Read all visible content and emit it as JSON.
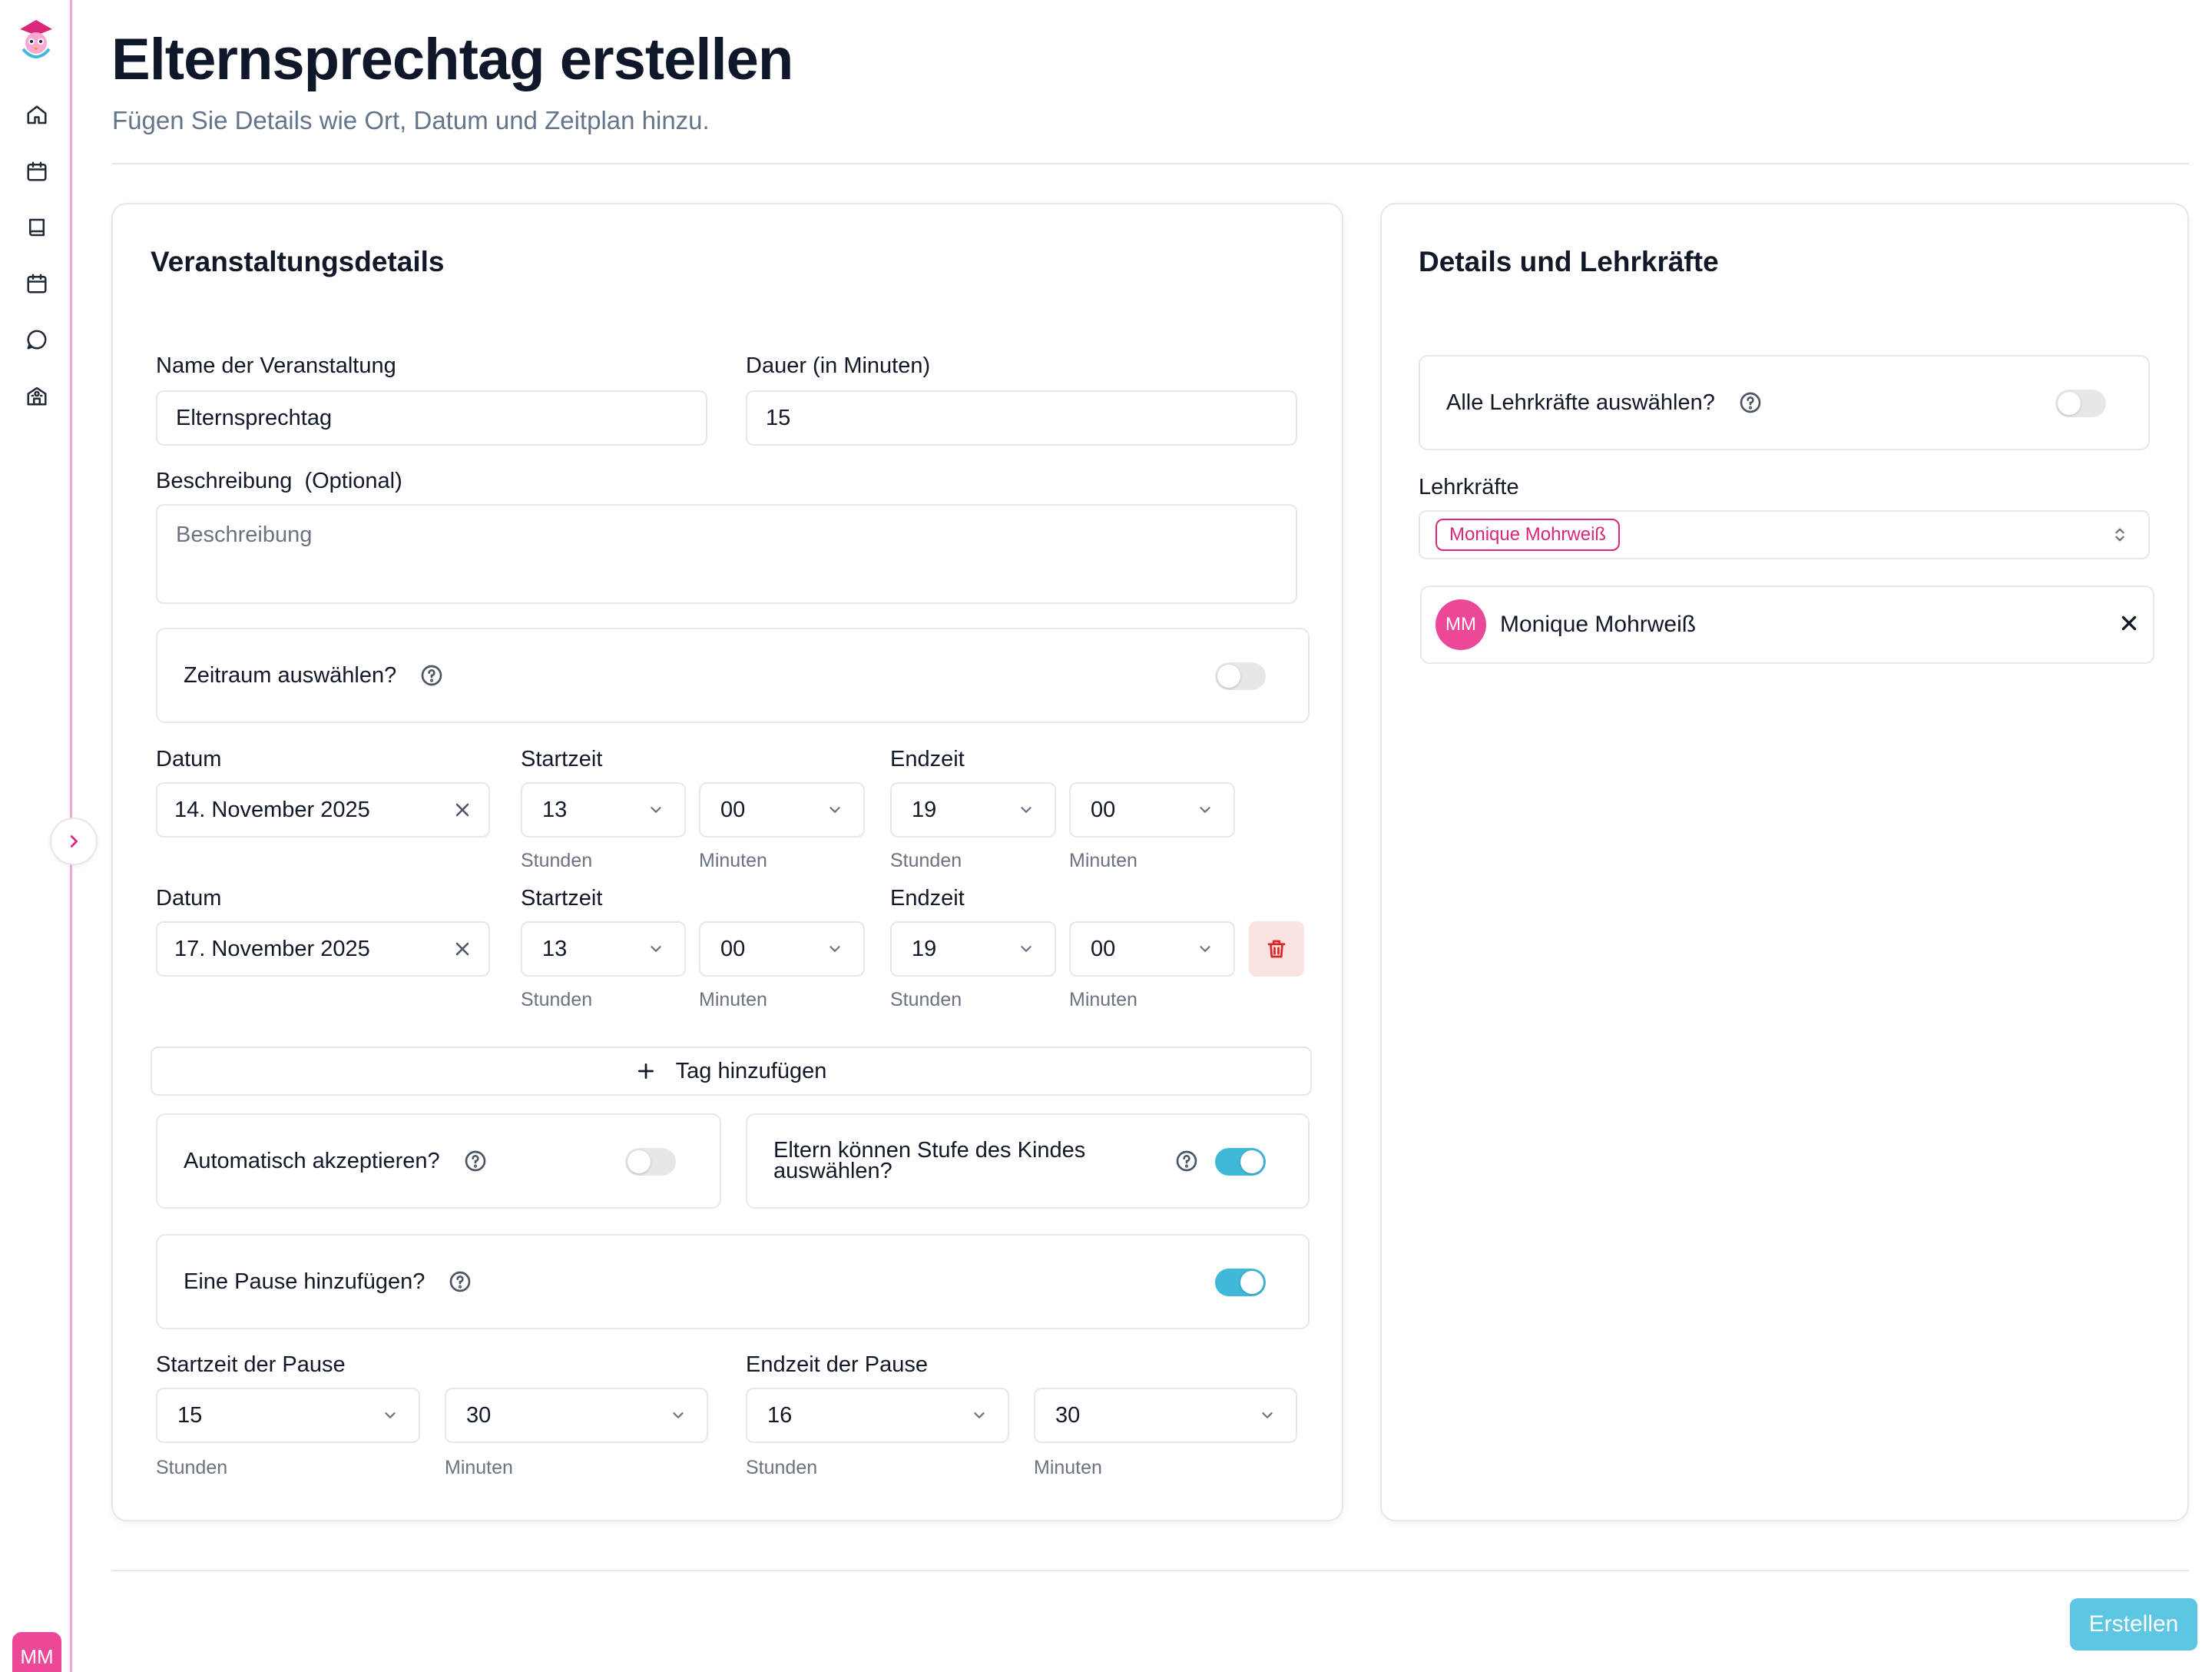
{
  "sidebar": {
    "nav": [
      {
        "name": "home-icon"
      },
      {
        "name": "calendar-icon"
      },
      {
        "name": "book-icon"
      },
      {
        "name": "calendar-alt-icon"
      },
      {
        "name": "chat-icon"
      },
      {
        "name": "school-icon"
      }
    ],
    "user_initials": "MM"
  },
  "header": {
    "title": "Elternsprechtag erstellen",
    "subtitle": "Fügen Sie Details wie Ort, Datum und Zeitplan hinzu."
  },
  "event": {
    "card_title": "Veranstaltungsdetails",
    "name_label": "Name der Veranstaltung",
    "name_value": "Elternsprechtag",
    "duration_label": "Dauer (in Minuten)",
    "duration_value": "15",
    "description_label": "Beschreibung  (Optional)",
    "description_placeholder": "Beschreibung",
    "timerange_label": "Zeitraum auswählen?",
    "timerange_on": false,
    "days": [
      {
        "date_label": "Datum",
        "date": "14. November 2025",
        "start_label": "Startzeit",
        "start_hour": "13",
        "start_min": "00",
        "end_label": "Endzeit",
        "end_hour": "19",
        "end_min": "00",
        "hours_label": "Stunden",
        "minutes_label": "Minuten"
      },
      {
        "date_label": "Datum",
        "date": "17. November 2025",
        "start_label": "Startzeit",
        "start_hour": "13",
        "start_min": "00",
        "end_label": "Endzeit",
        "end_hour": "19",
        "end_min": "00",
        "hours_label": "Stunden",
        "minutes_label": "Minuten"
      }
    ],
    "add_day_label": "Tag hinzufügen",
    "auto_accept_label": "Automatisch akzeptieren?",
    "auto_accept_on": false,
    "parents_level_label": "Eltern können Stufe des Kindes auswählen?",
    "parents_level_on": true,
    "pause_label": "Eine Pause hinzufügen?",
    "pause_on": true,
    "pause_start_label": "Startzeit der Pause",
    "pause_start_hour": "15",
    "pause_start_min": "30",
    "pause_end_label": "Endzeit der Pause",
    "pause_end_hour": "16",
    "pause_end_min": "30",
    "hours_label": "Stunden",
    "minutes_label": "Minuten"
  },
  "teachers": {
    "card_title": "Details und Lehrkräfte",
    "select_all_label": "Alle Lehrkräfte auswählen?",
    "select_all_on": false,
    "label": "Lehrkräfte",
    "selected_tag": "Monique Mohrweiß",
    "list": [
      {
        "initials": "MM",
        "name": "Monique Mohrweiß"
      }
    ]
  },
  "submit_label": "Erstellen",
  "colors": {
    "accent": "#3fb8d9",
    "brand_pink": "#ec4899",
    "danger": "#dc2626"
  }
}
